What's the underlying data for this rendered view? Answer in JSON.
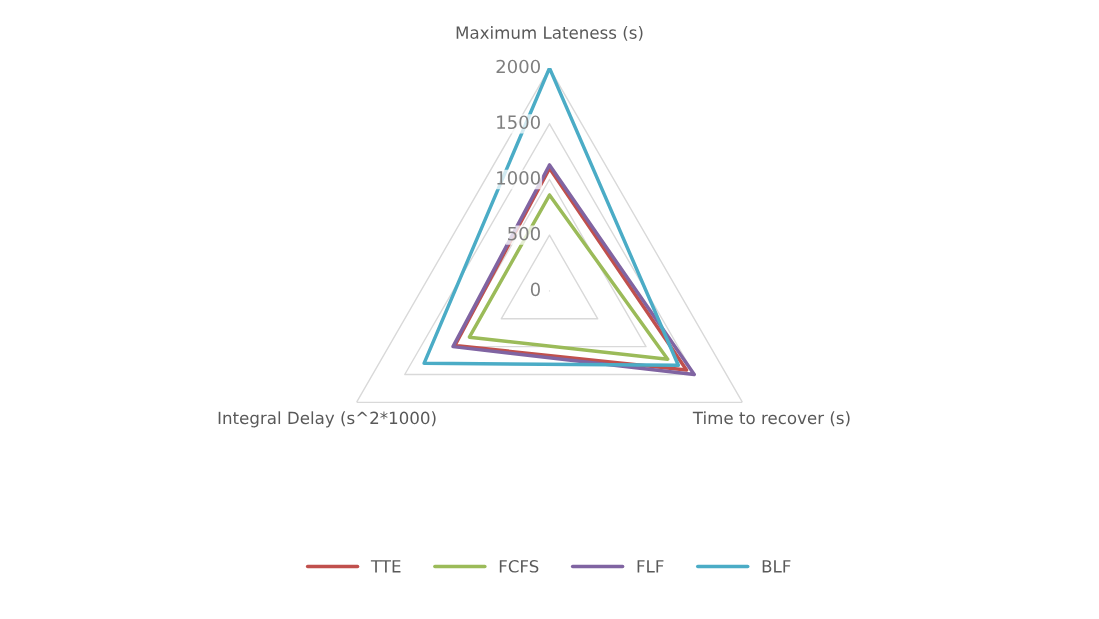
{
  "chart_data": {
    "type": "radar",
    "categories": [
      "Maximum Lateness (s)",
      "Time to recover (s)",
      "Integral Delay (s^2*1000)"
    ],
    "series": [
      {
        "name": "TTE",
        "color": "#c0504d",
        "values": [
          1100,
          1420,
          980
        ]
      },
      {
        "name": "FCFS",
        "color": "#9bbb59",
        "values": [
          860,
          1225,
          830
        ]
      },
      {
        "name": "FLF",
        "color": "#8064a2",
        "values": [
          1130,
          1500,
          1000
        ]
      },
      {
        "name": "BLF",
        "color": "#4bacc6",
        "values": [
          2000,
          1335,
          1300
        ]
      }
    ],
    "ylim": [
      0,
      2000
    ],
    "yticks": [
      0,
      500,
      1000,
      1500,
      2000
    ],
    "grid": true,
    "legend": "bottom"
  }
}
